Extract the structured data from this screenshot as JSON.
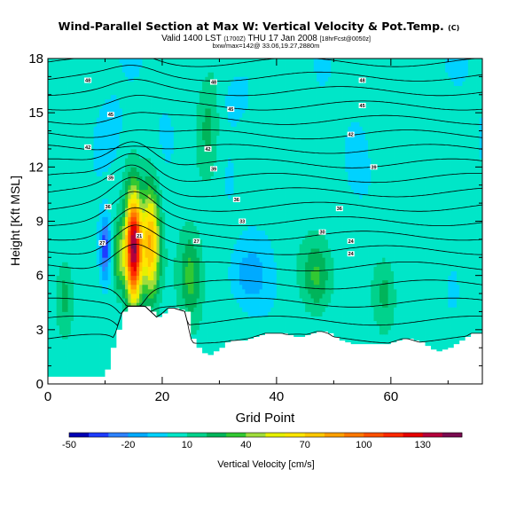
{
  "chart_data": {
    "type": "heatmap",
    "title": "Wind-Parallel Section at Max W: Vertical Velocity & Pot.Temp.",
    "title_mark": "(C)",
    "subtitle_valid": "Valid 1400 LST",
    "subtitle_utc": "(1700Z)",
    "subtitle_date": "THU 17 Jan 2008",
    "subtitle_run": "[18hrFcst@0050z]",
    "subtitle_loc": "bxw/max=142@ 33.06,19.27,2880m",
    "xlabel": "Grid Point",
    "ylabel": "Height [Kft MSL]",
    "xlim": [
      0,
      76
    ],
    "ylim": [
      0,
      18
    ],
    "xticks": [
      "0",
      "20",
      "40",
      "60"
    ],
    "xtick_values": [
      0,
      20,
      40,
      60
    ],
    "yticks": [
      "0",
      "3",
      "6",
      "9",
      "12",
      "15",
      "18"
    ],
    "ytick_values": [
      0,
      3,
      6,
      9,
      12,
      15,
      18
    ],
    "colorbar_label": "Vertical Velocity [cm/s]",
    "colorbar_ticks": [
      "-50",
      "-20",
      "10",
      "40",
      "70",
      "100",
      "130"
    ],
    "colorbar_tick_values": [
      -50,
      -20,
      10,
      40,
      70,
      100,
      130
    ],
    "colorbar_levels": [
      -50,
      -40,
      -30,
      -20,
      -10,
      0,
      10,
      20,
      30,
      40,
      50,
      60,
      70,
      80,
      90,
      100,
      110,
      120,
      130,
      140,
      150
    ],
    "colorbar_colors": [
      "#0000b4",
      "#1e3cff",
      "#2d82ff",
      "#00aaff",
      "#00d2ff",
      "#00e6c8",
      "#00d28c",
      "#00b45a",
      "#32c832",
      "#a0dc3c",
      "#e6f000",
      "#ffe600",
      "#ffc800",
      "#ffa000",
      "#ff7800",
      "#ff5000",
      "#ff2800",
      "#e60000",
      "#b4003c",
      "#7a0a50"
    ],
    "max_value": 142,
    "terrain_height_kft": [
      0.4,
      0.4,
      0.4,
      0.4,
      0.4,
      0.4,
      0.4,
      0.4,
      0.4,
      0.4,
      0.8,
      2.0,
      3.0,
      4.0,
      4.3,
      4.3,
      4.3,
      4.3,
      4.0,
      3.7,
      3.9,
      4.2,
      4.2,
      4.1,
      4.0,
      2.5,
      2.0,
      1.7,
      1.6,
      1.8,
      2.0,
      2.3,
      2.4,
      2.4,
      2.4,
      2.5,
      2.6,
      2.7,
      2.8,
      2.8,
      2.8,
      2.8,
      2.7,
      2.6,
      2.6,
      2.7,
      2.8,
      2.9,
      2.9,
      2.8,
      2.6,
      2.4,
      2.3,
      2.2,
      2.2,
      2.2,
      2.2,
      2.2,
      2.2,
      2.2,
      2.3,
      2.4,
      2.5,
      2.5,
      2.4,
      2.3,
      2.1,
      1.9,
      1.8,
      1.9,
      2.0,
      2.2,
      2.4,
      2.6,
      2.8,
      2.8,
      2.8
    ],
    "updrafts": [
      {
        "x": 15,
        "y": 7.5,
        "peak": 142,
        "sx": 1.4,
        "sy": 2.9
      },
      {
        "x": 18,
        "y": 7.8,
        "peak": 75,
        "sx": 1.5,
        "sy": 3.0
      },
      {
        "x": 12.5,
        "y": 7.0,
        "peak": 38,
        "sx": 1.2,
        "sy": 2.0
      },
      {
        "x": 25,
        "y": 6.0,
        "peak": 32,
        "sx": 2.0,
        "sy": 2.5
      },
      {
        "x": 47,
        "y": 6.0,
        "peak": 30,
        "sx": 2.5,
        "sy": 2.0
      },
      {
        "x": 59,
        "y": 5.2,
        "peak": 22,
        "sx": 2.0,
        "sy": 2.0
      },
      {
        "x": 3,
        "y": 5.0,
        "peak": 22,
        "sx": 1.5,
        "sy": 2.0
      },
      {
        "x": 28,
        "y": 14.0,
        "peak": 20,
        "sx": 2.0,
        "sy": 3.0
      }
    ],
    "downdrafts": [
      {
        "x": 10,
        "y": 7.5,
        "peak": -42,
        "sx": 0.9,
        "sy": 1.6
      },
      {
        "x": 35,
        "y": 6.0,
        "peak": -18,
        "sx": 3.0,
        "sy": 1.5
      },
      {
        "x": 11,
        "y": 14.0,
        "peak": -10,
        "sx": 2.5,
        "sy": 2.0
      },
      {
        "x": 33,
        "y": 16.0,
        "peak": -10,
        "sx": 2.5,
        "sy": 1.5
      }
    ],
    "isentrope_base_heights_kft": [
      2.5,
      3.5,
      4.5,
      5.5,
      6.5,
      7.4,
      8.2,
      9.0,
      9.8,
      10.6,
      11.4,
      12.2,
      13.0,
      13.8,
      14.6,
      15.4,
      16.2,
      17.0,
      17.8
    ],
    "isentrope_labels": [
      {
        "text": "48",
        "x": 7,
        "y": 16.8
      },
      {
        "text": "48",
        "x": 29,
        "y": 16.7
      },
      {
        "text": "48",
        "x": 55,
        "y": 16.8
      },
      {
        "text": "45",
        "x": 11,
        "y": 14.9
      },
      {
        "text": "45",
        "x": 32,
        "y": 15.2
      },
      {
        "text": "45",
        "x": 55,
        "y": 15.4
      },
      {
        "text": "42",
        "x": 7,
        "y": 13.1
      },
      {
        "text": "42",
        "x": 28,
        "y": 13.0
      },
      {
        "text": "42",
        "x": 53,
        "y": 13.8
      },
      {
        "text": "39",
        "x": 11,
        "y": 11.4
      },
      {
        "text": "39",
        "x": 29,
        "y": 11.9
      },
      {
        "text": "39",
        "x": 57,
        "y": 12.0
      },
      {
        "text": "36",
        "x": 10.5,
        "y": 9.8
      },
      {
        "text": "36",
        "x": 33,
        "y": 10.2
      },
      {
        "text": "36",
        "x": 51,
        "y": 9.7
      },
      {
        "text": "33",
        "x": 34,
        "y": 9.0
      },
      {
        "text": "30",
        "x": 48,
        "y": 8.4
      },
      {
        "text": "27",
        "x": 9.5,
        "y": 7.8
      },
      {
        "text": "27",
        "x": 26,
        "y": 7.9
      },
      {
        "text": "24",
        "x": 53,
        "y": 7.9
      },
      {
        "text": "24",
        "x": 53,
        "y": 7.2
      },
      {
        "text": "21",
        "x": 16,
        "y": 8.2
      }
    ]
  }
}
